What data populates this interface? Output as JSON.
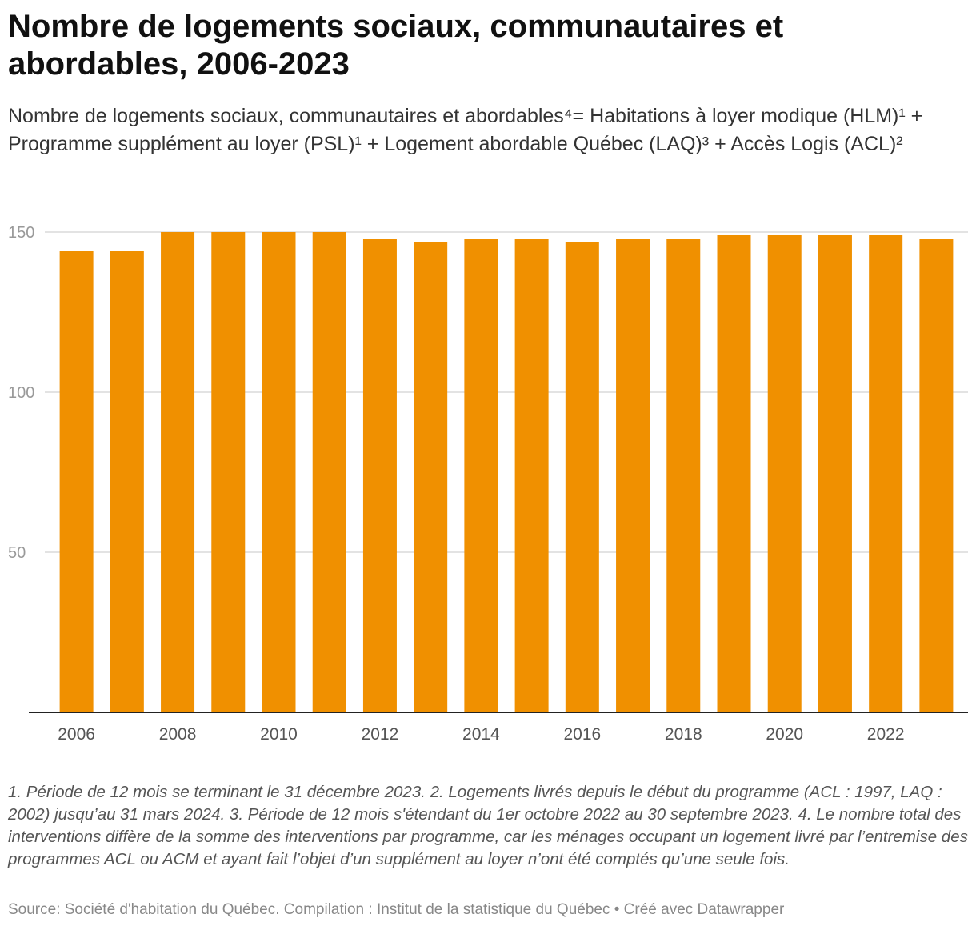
{
  "title": "Nombre de logements sociaux, communautaires et abordables, 2006-2023",
  "subtitle": "Nombre de logements sociaux, communautaires et abordables⁴= Habitations à loyer modique (HLM)¹ + Programme supplément au loyer (PSL)¹ + Logement abordable Québec (LAQ)³ + Accès Logis (ACL)²",
  "notes": "1. Période de 12 mois se terminant le 31 décembre 2023. 2. Logements livrés depuis le début du programme (ACL : 1997, LAQ : 2002) jusqu’au 31 mars 2024. 3. Période de 12 mois s'étendant du 1er octobre 2022 au 30 septembre 2023. 4. Le nombre total des interventions diffère de la somme des interventions par programme, car les ménages occupant un logement livré par l’entremise des programmes ACL ou ACM et ayant fait l’objet d’un supplément au loyer n’ont été comptés qu’une seule fois.",
  "source": "Source: Société d'habitation du Québec. Compilation : Institut de la statistique du Québec • Créé avec Datawrapper",
  "chart_data": {
    "type": "bar",
    "categories": [
      "2006",
      "2007",
      "2008",
      "2009",
      "2010",
      "2011",
      "2012",
      "2013",
      "2014",
      "2015",
      "2016",
      "2017",
      "2018",
      "2019",
      "2020",
      "2021",
      "2022",
      "2023"
    ],
    "values": [
      144,
      144,
      150,
      150,
      150,
      150,
      148,
      147,
      148,
      148,
      147,
      148,
      148,
      149,
      149,
      149,
      149,
      148
    ],
    "xticks": [
      "2006",
      "2008",
      "2010",
      "2012",
      "2014",
      "2016",
      "2018",
      "2020",
      "2022"
    ],
    "yticks": [
      "50",
      "100",
      "150"
    ],
    "ylim": [
      0,
      150
    ],
    "grid": true,
    "color": "#f09000"
  }
}
